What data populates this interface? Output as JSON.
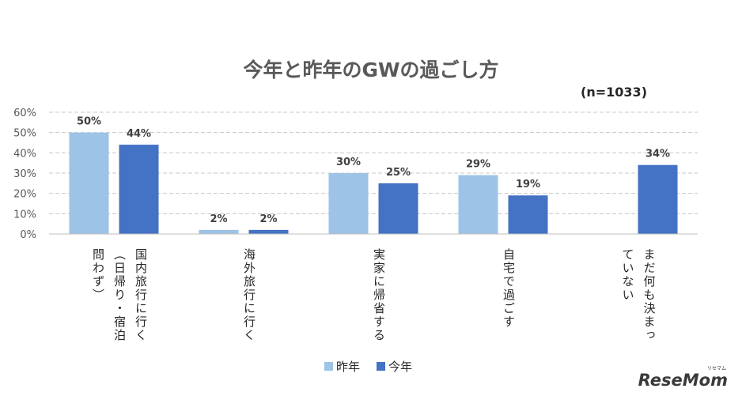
{
  "chart_data": {
    "type": "bar",
    "title": "今年と昨年のGWの過ごし方",
    "note": "(n=1033)",
    "categories": [
      [
        "国内旅行に行く",
        "（日帰り・宿泊",
        "問わず）"
      ],
      [
        "海外旅行に行く"
      ],
      [
        "実家に帰省する"
      ],
      [
        "自宅で過ごす"
      ],
      [
        "まだ何も決まっ",
        "ていない"
      ]
    ],
    "series": [
      {
        "name": "昨年",
        "color": "#9dc3e6",
        "values": [
          50,
          2,
          30,
          29,
          null
        ],
        "labels": [
          "50%",
          "2%",
          "30%",
          "29%",
          ""
        ]
      },
      {
        "name": "今年",
        "color": "#4472c4",
        "values": [
          44,
          2,
          25,
          19,
          34
        ],
        "labels": [
          "44%",
          "2%",
          "25%",
          "19%",
          "34%"
        ]
      }
    ],
    "ylim": [
      0,
      60
    ],
    "yticks": [
      "0%",
      "10%",
      "20%",
      "30%",
      "40%",
      "50%",
      "60%"
    ],
    "grid": true,
    "legend_position": "bottom"
  },
  "logo": {
    "text": "ReseMom",
    "small": "リセマム"
  }
}
